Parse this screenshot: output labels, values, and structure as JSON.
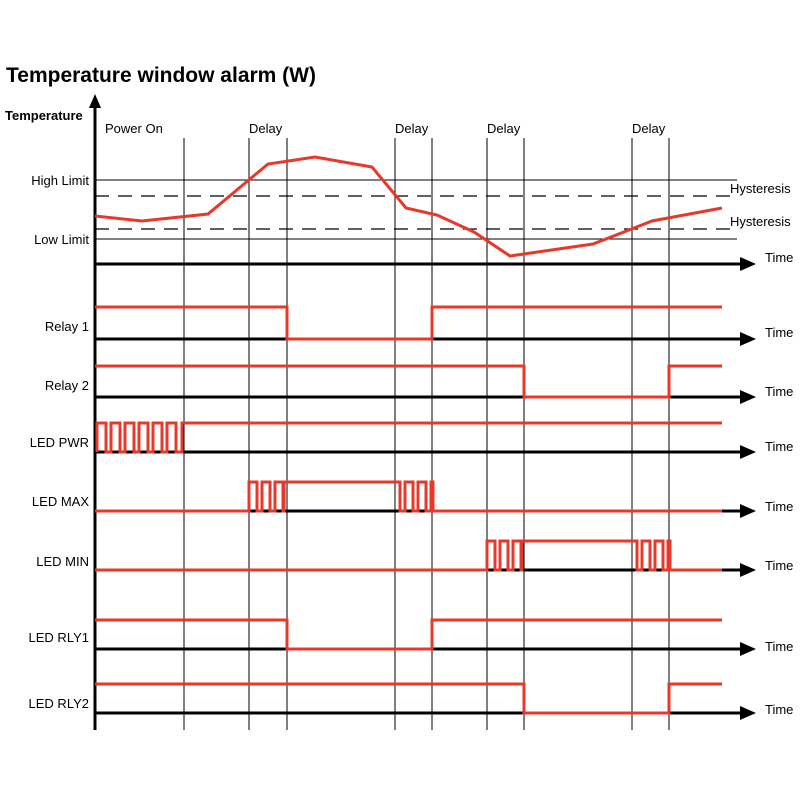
{
  "title": "Temperature window alarm (W)",
  "colors": {
    "signal": "#e8382c",
    "axis": "#000000"
  },
  "y_axis_label": "Temperature",
  "temperature": {
    "levels": [
      "High Limit",
      "Low Limit"
    ],
    "hysteresis_label": "Hysteresis",
    "hysteresis_labels": [
      "Hysteresis",
      "Hysteresis"
    ]
  },
  "time_label": "Time",
  "markers": [
    "Power On",
    "Delay",
    "Delay",
    "Delay",
    "Delay"
  ],
  "signals": [
    {
      "label": "Relay 1",
      "segments": [
        [
          0,
          1
        ],
        [
          0.3,
          0
        ],
        [
          0.54,
          1
        ]
      ]
    },
    {
      "label": "Relay 2",
      "segments": [
        [
          0,
          1
        ],
        [
          0.69,
          0
        ],
        [
          0.92,
          1
        ]
      ]
    },
    {
      "label": "LED PWR",
      "segments": [
        [
          0,
          1
        ]
      ],
      "blink_until": 0.14
    },
    {
      "label": "LED MAX",
      "segments": [
        [
          0,
          0
        ],
        [
          0.23,
          1
        ],
        [
          0.6,
          0
        ]
      ],
      "blink_windows": [
        [
          0.23,
          0.3
        ],
        [
          0.48,
          0.54
        ]
      ]
    },
    {
      "label": "LED MIN",
      "segments": [
        [
          0,
          0
        ],
        [
          0.62,
          1
        ],
        [
          0.92,
          0
        ]
      ],
      "blink_windows": [
        [
          0.62,
          0.69
        ],
        [
          0.86,
          0.92
        ]
      ]
    },
    {
      "label": "LED RLY1",
      "segments": [
        [
          0,
          1
        ],
        [
          0.3,
          0
        ],
        [
          0.54,
          1
        ]
      ]
    },
    {
      "label": "LED RLY2",
      "segments": [
        [
          0,
          1
        ],
        [
          0.69,
          0
        ],
        [
          0.92,
          1
        ]
      ]
    }
  ]
}
